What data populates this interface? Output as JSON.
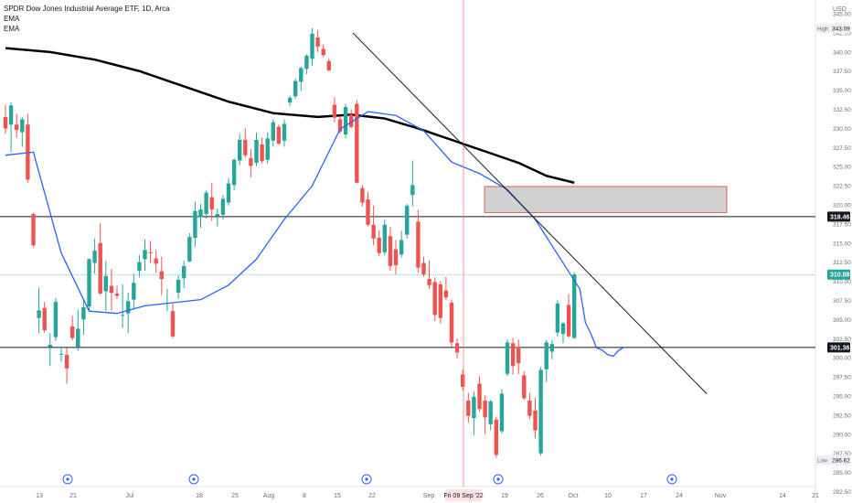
{
  "legend": {
    "title": "SPDR Dow Jones Industrial Average ETF, 1D, Arca",
    "line1": "EMA",
    "line2": "EMA"
  },
  "currency": "USD",
  "colors": {
    "up": "#26a69a",
    "down": "#ef5350",
    "ema_fast": "#2962ff",
    "ema_slow": "#000000",
    "price_line": "#26a69a",
    "crosshair": "#f08080",
    "zone_fill": "#d1d1d1",
    "zone_border": "#e53935"
  },
  "chart_data": {
    "type": "candlestick",
    "y_axis": {
      "range": [
        281.0,
        346.8
      ],
      "ticks": [
        282.5,
        285,
        287.5,
        290,
        292.5,
        295,
        297.5,
        300,
        302.5,
        305,
        307.5,
        310,
        312.5,
        315,
        317.5,
        320,
        322.5,
        325,
        327.5,
        330,
        332.5,
        335,
        337.5,
        340,
        342.5,
        345
      ],
      "tick_labels": [
        "282.50",
        "285.00",
        "287.50",
        "290.00",
        "292.50",
        "295.00",
        "297.50",
        "300.00",
        "302.50",
        "305.00",
        "307.50",
        "310.00",
        "312.50",
        "315.00",
        "317.50",
        "320.00",
        "322.50",
        "325.00",
        "327.50",
        "330.00",
        "332.50",
        "335.00",
        "337.50",
        "340.00",
        "342.50",
        "345.00"
      ]
    },
    "x_axis": {
      "labels": [
        "13",
        "21",
        "Jul",
        "18",
        "25",
        "Aug",
        "8",
        "15",
        "22",
        "Sep",
        "19",
        "26",
        "Oct",
        "10",
        "17",
        "24",
        "Nov",
        "14",
        "21"
      ],
      "crosshair_label": "Fri 09 Sep '22"
    },
    "price_labels": {
      "high": {
        "text": "High",
        "value": "343.09"
      },
      "low": {
        "text": "Low",
        "value": "286.62"
      },
      "level_1": "318.46",
      "level_2": "301.36",
      "last": "310.88"
    },
    "levels": [
      318.46,
      301.36
    ],
    "last_price": 310.88,
    "zone": {
      "top": 322.4,
      "bottom": 319.0
    },
    "trendline": {
      "start": 342.5,
      "end": 295.3
    },
    "dividend_markers": 5,
    "candles": [
      {
        "o": 331.5,
        "h": 333.1,
        "l": 329.3,
        "c": 330.0
      },
      {
        "o": 330.5,
        "h": 333.4,
        "l": 326.9,
        "c": 333.0
      },
      {
        "o": 330.5,
        "h": 331.9,
        "l": 328.8,
        "c": 329.8
      },
      {
        "o": 329.5,
        "h": 331.5,
        "l": 327.6,
        "c": 331.2
      },
      {
        "o": 330.5,
        "h": 331.9,
        "l": 322.9,
        "c": 323.3
      },
      {
        "o": 318.8,
        "h": 319.0,
        "l": 314.5,
        "c": 314.7
      },
      {
        "o": 305.2,
        "h": 309.2,
        "l": 303.2,
        "c": 306.2
      },
      {
        "o": 306.5,
        "h": 307.3,
        "l": 303.3,
        "c": 303.6
      },
      {
        "o": 301.4,
        "h": 303.2,
        "l": 298.9,
        "c": 301.7
      },
      {
        "o": 302.7,
        "h": 307.8,
        "l": 302.2,
        "c": 307.3
      },
      {
        "o": 300.5,
        "h": 301.5,
        "l": 299.5,
        "c": 300.5
      },
      {
        "o": 300.4,
        "h": 301.3,
        "l": 296.6,
        "c": 298.6
      },
      {
        "o": 304.1,
        "h": 305.5,
        "l": 302.3,
        "c": 302.6
      },
      {
        "o": 301.4,
        "h": 306.3,
        "l": 300.9,
        "c": 303.8
      },
      {
        "o": 305.0,
        "h": 307.6,
        "l": 303.0,
        "c": 306.6
      },
      {
        "o": 306.7,
        "h": 313.0,
        "l": 306.0,
        "c": 312.9
      },
      {
        "o": 312.4,
        "h": 315.6,
        "l": 311.0,
        "c": 314.0
      },
      {
        "o": 315.0,
        "h": 317.6,
        "l": 308.2,
        "c": 308.4
      },
      {
        "o": 308.7,
        "h": 312.7,
        "l": 306.1,
        "c": 310.7
      },
      {
        "o": 309.4,
        "h": 311.6,
        "l": 306.2,
        "c": 308.5
      },
      {
        "o": 308.4,
        "h": 309.4,
        "l": 307.7,
        "c": 308.1
      },
      {
        "o": 305.5,
        "h": 309.6,
        "l": 303.9,
        "c": 305.6
      },
      {
        "o": 305.8,
        "h": 308.5,
        "l": 303.2,
        "c": 307.4
      },
      {
        "o": 307.6,
        "h": 311.0,
        "l": 306.3,
        "c": 309.8
      },
      {
        "o": 311.4,
        "h": 313.4,
        "l": 310.5,
        "c": 312.5
      },
      {
        "o": 312.9,
        "h": 315.5,
        "l": 311.4,
        "c": 314.1
      },
      {
        "o": 313.8,
        "h": 315.3,
        "l": 312.4,
        "c": 313.7
      },
      {
        "o": 313.0,
        "h": 314.1,
        "l": 311.1,
        "c": 312.3
      },
      {
        "o": 311.3,
        "h": 313.2,
        "l": 308.2,
        "c": 310.3
      },
      {
        "o": 307.2,
        "h": 309.0,
        "l": 306.1,
        "c": 307.2
      },
      {
        "o": 306.1,
        "h": 307.1,
        "l": 302.6,
        "c": 302.8
      },
      {
        "o": 308.5,
        "h": 310.8,
        "l": 307.7,
        "c": 310.2
      },
      {
        "o": 310.4,
        "h": 312.7,
        "l": 309.1,
        "c": 312.0
      },
      {
        "o": 312.6,
        "h": 316.3,
        "l": 312.5,
        "c": 315.8
      },
      {
        "o": 315.7,
        "h": 320.4,
        "l": 314.5,
        "c": 319.2
      },
      {
        "o": 318.4,
        "h": 320.1,
        "l": 317.0,
        "c": 319.4
      },
      {
        "o": 318.8,
        "h": 321.9,
        "l": 318.2,
        "c": 321.6
      },
      {
        "o": 321.0,
        "h": 322.9,
        "l": 317.9,
        "c": 319.4
      },
      {
        "o": 318.5,
        "h": 319.5,
        "l": 317.2,
        "c": 318.8
      },
      {
        "o": 318.7,
        "h": 321.3,
        "l": 318.1,
        "c": 320.8
      },
      {
        "o": 320.3,
        "h": 323.5,
        "l": 319.9,
        "c": 322.8
      },
      {
        "o": 322.6,
        "h": 326.1,
        "l": 321.9,
        "c": 325.9
      },
      {
        "o": 325.8,
        "h": 329.3,
        "l": 325.2,
        "c": 328.5
      },
      {
        "o": 328.5,
        "h": 330.0,
        "l": 326.2,
        "c": 326.5
      },
      {
        "o": 326.1,
        "h": 327.3,
        "l": 323.6,
        "c": 325.1
      },
      {
        "o": 325.5,
        "h": 329.5,
        "l": 325.1,
        "c": 328.5
      },
      {
        "o": 327.9,
        "h": 328.8,
        "l": 325.4,
        "c": 325.7
      },
      {
        "o": 325.9,
        "h": 329.5,
        "l": 325.4,
        "c": 328.7
      },
      {
        "o": 328.4,
        "h": 331.2,
        "l": 327.6,
        "c": 330.8
      },
      {
        "o": 330.2,
        "h": 330.5,
        "l": 327.9,
        "c": 328.0
      },
      {
        "o": 328.4,
        "h": 331.2,
        "l": 327.6,
        "c": 330.6
      },
      {
        "o": 333.4,
        "h": 334.3,
        "l": 332.9,
        "c": 334.0
      },
      {
        "o": 334.2,
        "h": 336.5,
        "l": 333.9,
        "c": 336.2
      },
      {
        "o": 336.1,
        "h": 338.1,
        "l": 334.9,
        "c": 337.9
      },
      {
        "o": 337.8,
        "h": 339.7,
        "l": 337.1,
        "c": 339.5
      },
      {
        "o": 339.1,
        "h": 343.1,
        "l": 338.2,
        "c": 342.4
      },
      {
        "o": 341.9,
        "h": 342.8,
        "l": 340.0,
        "c": 340.7
      },
      {
        "o": 340.4,
        "h": 341.0,
        "l": 339.3,
        "c": 339.6
      },
      {
        "o": 338.8,
        "h": 339.2,
        "l": 337.5,
        "c": 337.6
      },
      {
        "o": 333.1,
        "h": 334.1,
        "l": 330.8,
        "c": 331.4
      },
      {
        "o": 331.2,
        "h": 331.6,
        "l": 329.3,
        "c": 329.6
      },
      {
        "o": 329.2,
        "h": 333.2,
        "l": 328.7,
        "c": 332.8
      },
      {
        "o": 331.8,
        "h": 332.5,
        "l": 330.0,
        "c": 330.2
      },
      {
        "o": 333.2,
        "h": 333.7,
        "l": 322.8,
        "c": 322.9
      },
      {
        "o": 322.2,
        "h": 322.6,
        "l": 319.8,
        "c": 320.3
      },
      {
        "o": 320.7,
        "h": 321.7,
        "l": 317.2,
        "c": 317.4
      },
      {
        "o": 317.4,
        "h": 319.9,
        "l": 314.7,
        "c": 315.6
      },
      {
        "o": 315.7,
        "h": 316.7,
        "l": 313.3,
        "c": 313.7
      },
      {
        "o": 313.8,
        "h": 318.1,
        "l": 313.4,
        "c": 317.4
      },
      {
        "o": 315.9,
        "h": 317.1,
        "l": 311.4,
        "c": 312.0
      },
      {
        "o": 314.2,
        "h": 315.4,
        "l": 310.9,
        "c": 312.1
      },
      {
        "o": 313.5,
        "h": 316.6,
        "l": 313.1,
        "c": 315.4
      },
      {
        "o": 316.1,
        "h": 320.1,
        "l": 315.6,
        "c": 319.9
      },
      {
        "o": 321.3,
        "h": 325.8,
        "l": 319.8,
        "c": 322.6
      },
      {
        "o": 317.8,
        "h": 319.4,
        "l": 311.1,
        "c": 311.8
      },
      {
        "o": 312.4,
        "h": 313.2,
        "l": 310.6,
        "c": 310.9
      },
      {
        "o": 310.3,
        "h": 312.7,
        "l": 309.0,
        "c": 309.5
      },
      {
        "o": 309.9,
        "h": 310.5,
        "l": 304.8,
        "c": 305.6
      },
      {
        "o": 309.6,
        "h": 310.0,
        "l": 304.5,
        "c": 305.2
      },
      {
        "o": 308.8,
        "h": 310.6,
        "l": 307.5,
        "c": 307.9
      },
      {
        "o": 307.2,
        "h": 307.6,
        "l": 301.4,
        "c": 302.0
      },
      {
        "o": 301.9,
        "h": 302.5,
        "l": 299.9,
        "c": 300.7
      },
      {
        "o": 297.8,
        "h": 298.5,
        "l": 295.7,
        "c": 296.2
      },
      {
        "o": 294.4,
        "h": 295.4,
        "l": 291.5,
        "c": 292.4
      },
      {
        "o": 292.1,
        "h": 295.6,
        "l": 289.9,
        "c": 294.9
      },
      {
        "o": 296.6,
        "h": 297.6,
        "l": 293.0,
        "c": 293.3
      },
      {
        "o": 294.4,
        "h": 295.1,
        "l": 290.0,
        "c": 292.2
      },
      {
        "o": 291.3,
        "h": 294.5,
        "l": 290.5,
        "c": 294.3
      },
      {
        "o": 291.9,
        "h": 292.3,
        "l": 286.9,
        "c": 287.3
      },
      {
        "o": 290.4,
        "h": 295.9,
        "l": 290.1,
        "c": 295.3
      },
      {
        "o": 297.9,
        "h": 302.4,
        "l": 297.6,
        "c": 302.0
      },
      {
        "o": 301.9,
        "h": 302.6,
        "l": 297.8,
        "c": 298.9
      },
      {
        "o": 301.4,
        "h": 302.4,
        "l": 297.9,
        "c": 299.3
      },
      {
        "o": 297.7,
        "h": 298.2,
        "l": 294.5,
        "c": 294.7
      },
      {
        "o": 294.4,
        "h": 295.4,
        "l": 292.0,
        "c": 292.4
      },
      {
        "o": 293.1,
        "h": 294.8,
        "l": 289.5,
        "c": 290.5
      },
      {
        "o": 287.5,
        "h": 298.8,
        "l": 287.2,
        "c": 298.4
      },
      {
        "o": 298.5,
        "h": 302.3,
        "l": 296.8,
        "c": 302.0
      },
      {
        "o": 300.8,
        "h": 302.3,
        "l": 299.8,
        "c": 301.8
      },
      {
        "o": 303.3,
        "h": 307.5,
        "l": 302.8,
        "c": 307.1
      },
      {
        "o": 303.1,
        "h": 304.7,
        "l": 301.9,
        "c": 304.5
      },
      {
        "o": 306.9,
        "h": 308.3,
        "l": 302.6,
        "c": 302.8
      },
      {
        "o": 302.6,
        "h": 311.2,
        "l": 302.4,
        "c": 310.9
      }
    ],
    "ema_fast": [
      [
        0,
        326.5
      ],
      [
        5,
        326.9
      ],
      [
        10,
        313.7
      ],
      [
        15,
        306.1
      ],
      [
        20,
        305.8
      ],
      [
        25,
        306.8
      ],
      [
        30,
        307.2
      ],
      [
        35,
        307.6
      ],
      [
        40,
        309.5
      ],
      [
        45,
        312.9
      ],
      [
        50,
        318.1
      ],
      [
        55,
        322.5
      ],
      [
        60,
        329.9
      ],
      [
        65,
        332.2
      ],
      [
        70,
        331.7
      ],
      [
        75,
        329.7
      ],
      [
        80,
        325.6
      ],
      [
        85,
        324.1
      ],
      [
        90,
        322.0
      ],
      [
        95,
        318.1
      ],
      [
        100,
        312.4
      ],
      [
        103,
        309.0
      ],
      [
        104,
        304.6
      ],
      [
        105,
        303.1
      ],
      [
        106,
        301.3
      ],
      [
        107,
        301.0
      ],
      [
        108,
        300.4
      ],
      [
        109,
        300.2
      ],
      [
        110,
        301.0
      ],
      [
        111,
        301.4
      ]
    ],
    "ema_slow": [
      [
        0,
        340.5
      ],
      [
        8,
        340.0
      ],
      [
        16,
        339.0
      ],
      [
        24,
        337.5
      ],
      [
        32,
        335.5
      ],
      [
        40,
        333.5
      ],
      [
        48,
        332.0
      ],
      [
        56,
        331.5
      ],
      [
        62,
        331.8
      ],
      [
        68,
        331.3
      ],
      [
        74,
        330.0
      ],
      [
        80,
        328.5
      ],
      [
        86,
        327.0
      ],
      [
        92,
        325.5
      ],
      [
        97,
        323.8
      ],
      [
        102,
        322.9
      ]
    ]
  }
}
